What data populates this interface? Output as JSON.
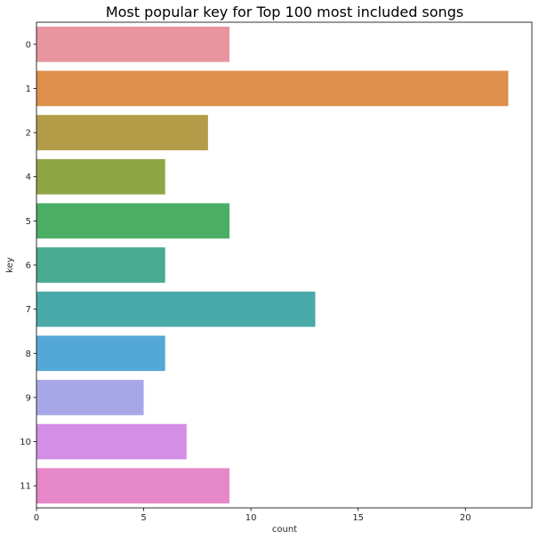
{
  "chart_data": {
    "type": "bar",
    "orientation": "horizontal",
    "title": "Most popular key for Top 100 most included songs",
    "xlabel": "count",
    "ylabel": "key",
    "xlim": [
      0,
      23.1
    ],
    "xticks": [
      0,
      5,
      10,
      15,
      20
    ],
    "grid": false,
    "categories": [
      "0",
      "1",
      "2",
      "4",
      "5",
      "6",
      "7",
      "8",
      "9",
      "10",
      "11"
    ],
    "values": [
      9,
      22,
      8,
      6,
      9,
      6,
      13,
      6,
      5,
      7,
      9
    ],
    "colors": [
      "#e8959f",
      "#dd8f4b",
      "#b39c48",
      "#8ea544",
      "#4aae64",
      "#48aa90",
      "#4aa9a9",
      "#54a8d6",
      "#a7a7e8",
      "#d48ee6",
      "#e688c8"
    ]
  }
}
